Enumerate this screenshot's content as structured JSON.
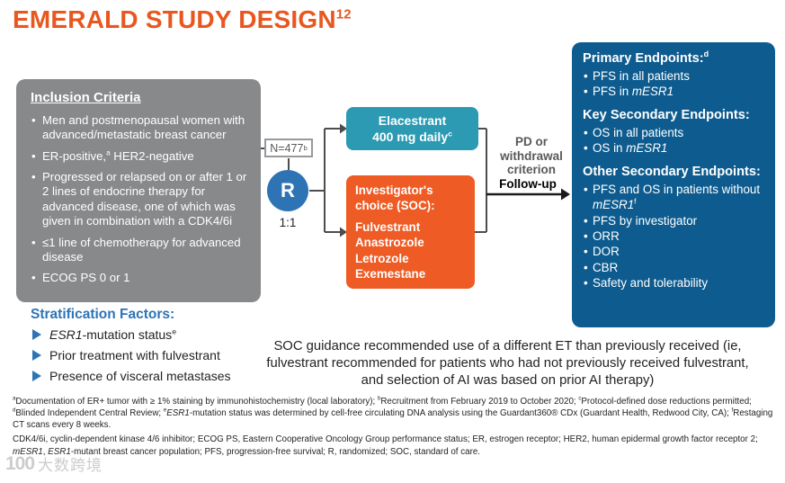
{
  "colors": {
    "title_orange": "#E8571F",
    "gray_box": "#87898B",
    "teal_box": "#2B9AB2",
    "orange_box": "#EE5B24",
    "endpoints_blue": "#0E5C8F",
    "accent_blue": "#2E74B5"
  },
  "title": {
    "text": "EMERALD STUDY DESIGN",
    "sup": "12"
  },
  "inclusion": {
    "heading": "Inclusion Criteria",
    "items": [
      [
        {
          "t": "Men and postmenopausal women with advanced/metastatic breast cancer"
        }
      ],
      [
        {
          "t": "ER-positive,"
        },
        {
          "t": "a",
          "sup": true
        },
        {
          "t": " HER2-negative"
        }
      ],
      [
        {
          "t": "Progressed or relapsed on or after 1 or 2 lines of endocrine therapy for advanced disease, one of which was given in combination with a CDK4/6i"
        }
      ],
      [
        {
          "t": "≤1 line of chemotherapy for advanced disease"
        }
      ],
      [
        {
          "t": "ECOG PS 0 or 1"
        }
      ]
    ]
  },
  "randomization": {
    "n_label": [
      {
        "t": "N=477"
      },
      {
        "t": "b",
        "sup": true
      }
    ],
    "r": "R",
    "ratio": "1:1"
  },
  "arms": {
    "elacestrant": {
      "line1": "Elacestrant",
      "line2": [
        {
          "t": "400 mg daily"
        },
        {
          "t": "c",
          "sup": true
        }
      ]
    },
    "soc": {
      "heading1": "Investigator's",
      "heading2": "choice (SOC):",
      "drugs": [
        "Fulvestrant",
        "Anastrozole",
        "Letrozole",
        "Exemestane"
      ]
    }
  },
  "transition": {
    "criterion": "PD or withdrawal criterion",
    "followup": "Follow-up"
  },
  "endpoints": {
    "primary": {
      "heading": [
        {
          "t": "Primary Endpoints:"
        },
        {
          "t": "d",
          "sup": true
        }
      ],
      "items": [
        [
          {
            "t": "PFS in all patients"
          }
        ],
        [
          {
            "t": "PFS in "
          },
          {
            "t": "mESR1",
            "i": true
          }
        ]
      ]
    },
    "key_secondary": {
      "heading": "Key Secondary Endpoints:",
      "items": [
        [
          {
            "t": "OS in all patients"
          }
        ],
        [
          {
            "t": "OS in "
          },
          {
            "t": "mESR1",
            "i": true
          }
        ]
      ]
    },
    "other_secondary": {
      "heading": "Other Secondary Endpoints:",
      "items": [
        [
          {
            "t": "PFS and OS in patients without "
          },
          {
            "t": "mESR1",
            "i": true
          },
          {
            "t": "f",
            "sup": true
          }
        ],
        [
          {
            "t": "PFS by investigator"
          }
        ],
        [
          {
            "t": "ORR"
          }
        ],
        [
          {
            "t": "DOR"
          }
        ],
        [
          {
            "t": "CBR"
          }
        ],
        [
          {
            "t": "Safety and tolerability"
          }
        ]
      ]
    }
  },
  "stratification": {
    "heading": "Stratification Factors:",
    "items": [
      [
        {
          "t": "ESR1",
          "i": true
        },
        {
          "t": "-mutation status"
        },
        {
          "t": "e",
          "sup": true
        }
      ],
      [
        {
          "t": "Prior treatment with fulvestrant"
        }
      ],
      [
        {
          "t": "Presence of visceral metastases"
        }
      ]
    ]
  },
  "soc_guidance": "SOC guidance recommended use of a different ET than previously received (ie, fulvestrant recommended for patients who had not previously received fulvestrant, and selection of AI was based on prior AI therapy)",
  "footnotes": [
    [
      {
        "t": "a",
        "sup": true
      },
      {
        "t": "Documentation of ER+ tumor with ≥ 1% staining by immunohistochemistry (local laboratory); "
      },
      {
        "t": "b",
        "sup": true
      },
      {
        "t": "Recruitment from February 2019 to October 2020; "
      },
      {
        "t": "c",
        "sup": true
      },
      {
        "t": "Protocol-defined dose reductions permitted; "
      },
      {
        "t": "d",
        "sup": true
      },
      {
        "t": "Blinded Independent Central Review; "
      },
      {
        "t": "e",
        "sup": true
      },
      {
        "t": "ESR1",
        "i": true
      },
      {
        "t": "-mutation status was determined by cell-free circulating DNA analysis using the Guardant360® CDx (Guardant Health, Redwood City, CA); "
      },
      {
        "t": "f",
        "sup": true
      },
      {
        "t": "Restaging CT scans every 8 weeks."
      }
    ],
    [
      {
        "t": "CDK4/6i, cyclin-dependent kinase 4/6 inhibitor; ECOG PS, Eastern Cooperative Oncology Group performance status; ER, estrogen receptor; HER2, human epidermal growth factor receptor 2; "
      },
      {
        "t": "mESR1",
        "i": true
      },
      {
        "t": ", "
      },
      {
        "t": "ESR1",
        "i": true
      },
      {
        "t": "-mutant breast cancer population; PFS, progression-free survival; R, randomized; SOC, standard of care."
      }
    ]
  ],
  "watermark": {
    "logo": "100",
    "text": "大数跨境"
  }
}
